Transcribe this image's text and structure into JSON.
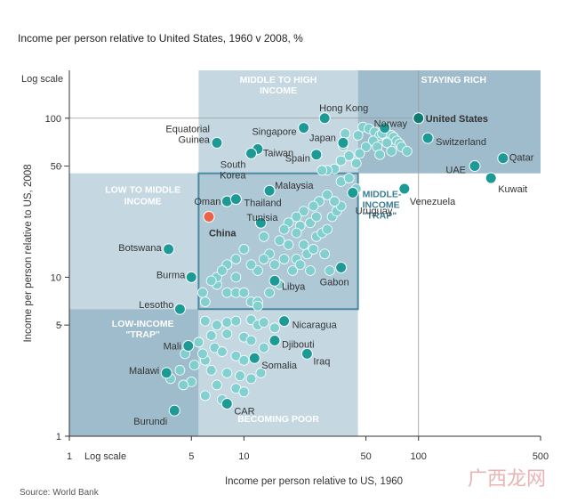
{
  "title": "Income per person relative to United States, 1960 v 2008, %",
  "source": "Source: World Bank",
  "watermark": "广西龙网",
  "chart_data": {
    "type": "scatter",
    "xlabel": "Income per person relative to US, 1960",
    "ylabel": "Income per person relative to US, 2008",
    "x_scale": "log",
    "y_scale": "log",
    "x_scale_label": "Log scale",
    "y_scale_label": "Log scale",
    "xlim": [
      1,
      500
    ],
    "ylim": [
      1,
      200
    ],
    "x_ticks": [
      1,
      5,
      10,
      50,
      100,
      500
    ],
    "y_ticks": [
      1,
      5,
      10,
      50,
      100
    ],
    "colors": {
      "region_light": "#c5d8e2",
      "region_mid": "#aec8d6",
      "region_dark": "#9fbccc",
      "labeled_point": "#1e9a96",
      "unlabeled_point": "#7ed0cd",
      "china": "#e8634a",
      "us": "#0e7a70",
      "label": "#333333",
      "region_label": "#ffffff",
      "trap_label": "#3a7d94"
    },
    "regions": [
      {
        "label": "MIDDLE TO HIGH\nINCOME",
        "x": [
          5.5,
          45
        ],
        "y": [
          45,
          200
        ]
      },
      {
        "label": "STAYING RICH",
        "x": [
          45,
          500
        ],
        "y": [
          45,
          200
        ]
      },
      {
        "label": "LOW TO MIDDLE\nINCOME",
        "x": [
          1,
          5.5
        ],
        "y": [
          6.3,
          45
        ]
      },
      {
        "label": "LOW-INCOME\n\"TRAP\"",
        "x": [
          1,
          5.5
        ],
        "y": [
          1,
          6.3
        ]
      },
      {
        "label": "BECOMING POOR",
        "x": [
          5.5,
          45
        ],
        "y": [
          1,
          6.3
        ]
      },
      {
        "label": "MIDDLE-\nINCOME\n\"TRAP\"",
        "x": [
          5.5,
          45
        ],
        "y": [
          6.3,
          45
        ]
      }
    ],
    "labeled_points": [
      {
        "name": "United States",
        "x": 100,
        "y": 100
      },
      {
        "name": "Hong Kong",
        "x": 29,
        "y": 100
      },
      {
        "name": "Norway",
        "x": 64,
        "y": 87
      },
      {
        "name": "Switzerland",
        "x": 113,
        "y": 75
      },
      {
        "name": "Qatar",
        "x": 305,
        "y": 56
      },
      {
        "name": "UAE",
        "x": 210,
        "y": 50
      },
      {
        "name": "Kuwait",
        "x": 260,
        "y": 42
      },
      {
        "name": "Singapore",
        "x": 22,
        "y": 87
      },
      {
        "name": "Japan",
        "x": 37,
        "y": 70
      },
      {
        "name": "Taiwan",
        "x": 12,
        "y": 64
      },
      {
        "name": "Equatorial Guinea",
        "x": 7,
        "y": 70
      },
      {
        "name": "South Korea",
        "x": 11,
        "y": 60
      },
      {
        "name": "Spain",
        "x": 26,
        "y": 59
      },
      {
        "name": "Malaysia",
        "x": 14,
        "y": 35
      },
      {
        "name": "Oman",
        "x": 8,
        "y": 30
      },
      {
        "name": "Thailand",
        "x": 9,
        "y": 31
      },
      {
        "name": "China",
        "x": 6.3,
        "y": 24
      },
      {
        "name": "Tunisia",
        "x": 12.5,
        "y": 22
      },
      {
        "name": "Uruguay",
        "x": 42,
        "y": 34
      },
      {
        "name": "Venezuela",
        "x": 83,
        "y": 36
      },
      {
        "name": "Gabon",
        "x": 36,
        "y": 11.5
      },
      {
        "name": "Libya",
        "x": 15,
        "y": 9.5
      },
      {
        "name": "Botswana",
        "x": 3.7,
        "y": 15
      },
      {
        "name": "Burma",
        "x": 5,
        "y": 10
      },
      {
        "name": "Lesotho",
        "x": 4.3,
        "y": 6.3
      },
      {
        "name": "Nicaragua",
        "x": 17,
        "y": 5.3
      },
      {
        "name": "Djibouti",
        "x": 15,
        "y": 4
      },
      {
        "name": "Mali",
        "x": 4.8,
        "y": 3.7
      },
      {
        "name": "Iraq",
        "x": 23,
        "y": 3.3
      },
      {
        "name": "Somalia",
        "x": 11.5,
        "y": 3.1
      },
      {
        "name": "Malawi",
        "x": 3.6,
        "y": 2.5
      },
      {
        "name": "CAR",
        "x": 8,
        "y": 1.6
      },
      {
        "name": "Burundi",
        "x": 4,
        "y": 1.45
      }
    ],
    "other_points": [
      [
        48,
        88
      ],
      [
        52,
        86
      ],
      [
        56,
        82
      ],
      [
        60,
        78
      ],
      [
        62,
        80
      ],
      [
        70,
        78
      ],
      [
        72,
        76
      ],
      [
        75,
        72
      ],
      [
        78,
        69
      ],
      [
        55,
        72
      ],
      [
        50,
        66
      ],
      [
        66,
        70
      ],
      [
        80,
        66
      ],
      [
        58,
        66
      ],
      [
        86,
        62
      ],
      [
        46,
        60
      ],
      [
        40,
        58
      ],
      [
        36,
        54
      ],
      [
        33,
        48
      ],
      [
        30,
        47
      ],
      [
        28,
        47
      ],
      [
        37,
        67
      ],
      [
        44,
        52
      ],
      [
        60,
        59
      ],
      [
        70,
        62
      ],
      [
        38,
        80
      ],
      [
        45,
        78
      ],
      [
        36,
        40
      ],
      [
        40,
        42
      ],
      [
        44,
        36
      ],
      [
        30,
        33
      ],
      [
        27,
        30
      ],
      [
        25,
        28
      ],
      [
        22,
        26
      ],
      [
        20,
        24
      ],
      [
        18,
        22
      ],
      [
        17,
        20
      ],
      [
        21,
        21
      ],
      [
        24,
        22
      ],
      [
        26,
        18
      ],
      [
        28,
        19
      ],
      [
        30,
        20
      ],
      [
        32,
        24
      ],
      [
        34,
        26
      ],
      [
        36,
        28
      ],
      [
        33,
        30
      ],
      [
        22,
        16
      ],
      [
        18,
        16
      ],
      [
        16,
        17
      ],
      [
        14,
        14
      ],
      [
        13,
        13
      ],
      [
        15,
        12
      ],
      [
        12,
        11
      ],
      [
        11,
        12
      ],
      [
        9,
        13
      ],
      [
        9,
        10
      ],
      [
        8,
        12
      ],
      [
        7,
        9
      ],
      [
        7,
        10
      ],
      [
        8,
        8
      ],
      [
        9,
        8
      ],
      [
        10,
        8
      ],
      [
        11,
        7
      ],
      [
        12,
        7
      ],
      [
        14,
        8
      ],
      [
        16,
        9
      ],
      [
        19,
        11
      ],
      [
        20,
        13
      ],
      [
        23,
        14
      ],
      [
        25,
        15
      ],
      [
        29,
        14
      ],
      [
        31,
        11
      ],
      [
        21,
        12
      ],
      [
        26,
        24
      ],
      [
        20,
        19
      ],
      [
        24,
        11
      ],
      [
        17,
        13
      ],
      [
        13,
        18
      ],
      [
        10,
        15
      ],
      [
        6,
        7
      ],
      [
        5.8,
        8
      ],
      [
        6.5,
        9.5
      ],
      [
        7.5,
        11
      ],
      [
        12,
        6.6
      ],
      [
        6,
        5.3
      ],
      [
        7,
        5
      ],
      [
        8,
        5.2
      ],
      [
        9,
        5.3
      ],
      [
        11,
        5.4
      ],
      [
        12,
        5
      ],
      [
        13,
        5.2
      ],
      [
        15,
        4.8
      ],
      [
        6.5,
        4.3
      ],
      [
        8,
        4.4
      ],
      [
        10,
        4.2
      ],
      [
        11,
        4
      ],
      [
        13,
        3.6
      ],
      [
        5.5,
        3.9
      ],
      [
        6.8,
        3.6
      ],
      [
        7.5,
        3.4
      ],
      [
        9,
        3.2
      ],
      [
        10,
        3
      ],
      [
        6,
        3
      ],
      [
        5.2,
        2.8
      ],
      [
        6.5,
        2.6
      ],
      [
        8,
        2.5
      ],
      [
        9.5,
        2.4
      ],
      [
        11,
        2.3
      ],
      [
        12.5,
        2.5
      ],
      [
        7,
        2.1
      ],
      [
        9,
        2
      ],
      [
        10,
        1.9
      ],
      [
        6,
        1.8
      ],
      [
        7.5,
        1.7
      ],
      [
        4.6,
        3.3
      ],
      [
        5.8,
        3.3
      ],
      [
        5,
        2.2
      ],
      [
        4.3,
        2.6
      ],
      [
        4.5,
        2.1
      ],
      [
        3.8,
        2.3
      ]
    ]
  }
}
